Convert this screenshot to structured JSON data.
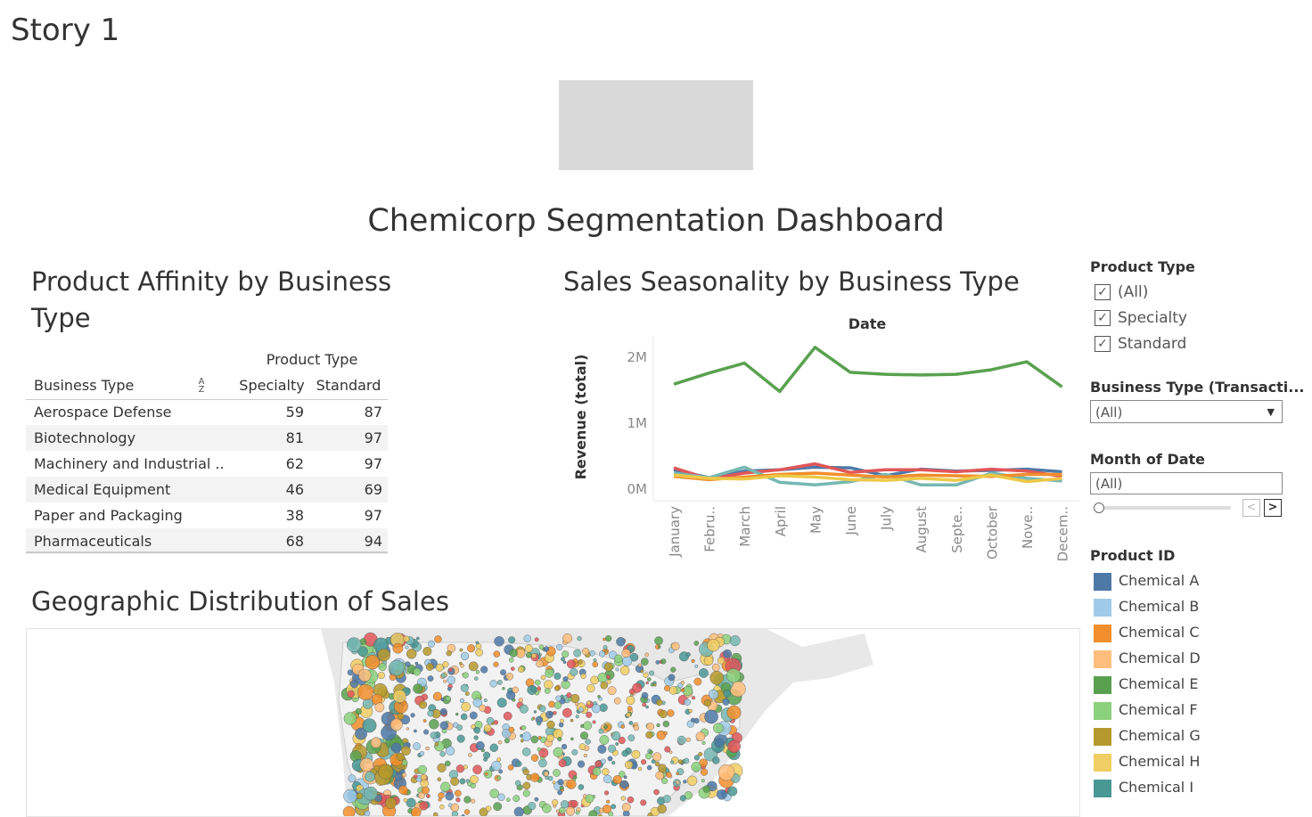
{
  "story_title": "Story 1",
  "dashboard_title": "Chemicorp Segmentation Dashboard",
  "affinity": {
    "title": "Product Affinity by Business Type",
    "column_group": "Product Type",
    "headers": {
      "business_type": "Business Type",
      "specialty": "Specialty",
      "standard": "Standard"
    },
    "rows": [
      {
        "name": "Aerospace Defense",
        "specialty": "59",
        "standard": "87"
      },
      {
        "name": "Biotechnology",
        "specialty": "81",
        "standard": "97"
      },
      {
        "name": "Machinery and Industrial ..",
        "specialty": "62",
        "standard": "97"
      },
      {
        "name": "Medical Equipment",
        "specialty": "46",
        "standard": "69"
      },
      {
        "name": "Paper and Packaging",
        "specialty": "38",
        "standard": "97"
      },
      {
        "name": "Pharmaceuticals",
        "specialty": "68",
        "standard": "94"
      }
    ]
  },
  "seasonality": {
    "title": "Sales Seasonality by Business Type"
  },
  "chart_data": {
    "type": "line",
    "title": "Sales Seasonality by Business Type",
    "xlabel": "Date",
    "ylabel": "Revenue (total)",
    "categories": [
      "January",
      "Febru..",
      "March",
      "April",
      "May",
      "June",
      "July",
      "August",
      "Septe..",
      "October",
      "Nove..",
      "Decem.."
    ],
    "y_ticks": [
      "0M",
      "1M",
      "2M"
    ],
    "ylim": [
      0,
      2300000
    ],
    "grid": false,
    "series": [
      {
        "color": "#59a14f",
        "values": [
          1580000,
          1750000,
          1900000,
          1470000,
          2140000,
          1760000,
          1730000,
          1720000,
          1730000,
          1800000,
          1920000,
          1540000
        ]
      },
      {
        "color": "#4e79a7",
        "values": [
          280000,
          160000,
          260000,
          280000,
          320000,
          310000,
          190000,
          290000,
          260000,
          270000,
          290000,
          250000
        ]
      },
      {
        "color": "#e15759",
        "values": [
          310000,
          140000,
          230000,
          280000,
          370000,
          240000,
          280000,
          280000,
          250000,
          290000,
          260000,
          180000
        ]
      },
      {
        "color": "#76b7b2",
        "values": [
          230000,
          160000,
          320000,
          90000,
          50000,
          100000,
          210000,
          50000,
          50000,
          230000,
          150000,
          110000
        ]
      },
      {
        "color": "#f28e2b",
        "values": [
          180000,
          130000,
          170000,
          210000,
          230000,
          200000,
          170000,
          200000,
          190000,
          180000,
          210000,
          210000
        ]
      },
      {
        "color": "#edc948",
        "values": [
          200000,
          150000,
          140000,
          190000,
          170000,
          130000,
          120000,
          150000,
          120000,
          200000,
          100000,
          150000
        ]
      }
    ]
  },
  "filters": {
    "product_type": {
      "title": "Product Type",
      "options": [
        "(All)",
        "Specialty",
        "Standard"
      ],
      "check_mark": "✓"
    },
    "business_type": {
      "title": "Business Type (Transacti...",
      "value": "(All)",
      "arrow": "▼"
    },
    "month": {
      "title": "Month of Date",
      "value": "(All)",
      "prev": "<",
      "next": ">"
    }
  },
  "legend": {
    "title": "Product ID",
    "items": [
      {
        "label": "Chemical A",
        "color": "#4e79a7"
      },
      {
        "label": "Chemical B",
        "color": "#a0cbe8"
      },
      {
        "label": "Chemical C",
        "color": "#f28e2b"
      },
      {
        "label": "Chemical D",
        "color": "#ffbe7d"
      },
      {
        "label": "Chemical E",
        "color": "#59a14f"
      },
      {
        "label": "Chemical F",
        "color": "#8cd17d"
      },
      {
        "label": "Chemical G",
        "color": "#b6992d"
      },
      {
        "label": "Chemical H",
        "color": "#f1ce63"
      },
      {
        "label": "Chemical I",
        "color": "#499894"
      }
    ]
  },
  "geo": {
    "title": "Geographic Distribution of Sales"
  }
}
